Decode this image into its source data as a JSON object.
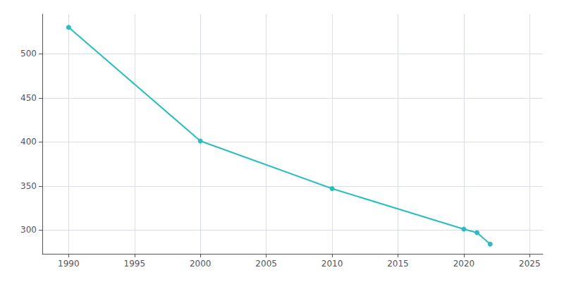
{
  "chart_data": {
    "type": "line",
    "x": [
      1990,
      2000,
      2010,
      2020,
      2021,
      2022
    ],
    "values": [
      530,
      401,
      347,
      301,
      297,
      284
    ],
    "color": "#29BDBD",
    "marker": "circle",
    "xlim": [
      1988,
      2026
    ],
    "ylim": [
      273,
      545
    ],
    "xticks": [
      1990,
      1995,
      2000,
      2005,
      2010,
      2015,
      2020,
      2025
    ],
    "yticks": [
      300,
      350,
      400,
      450,
      500
    ],
    "grid": true
  }
}
